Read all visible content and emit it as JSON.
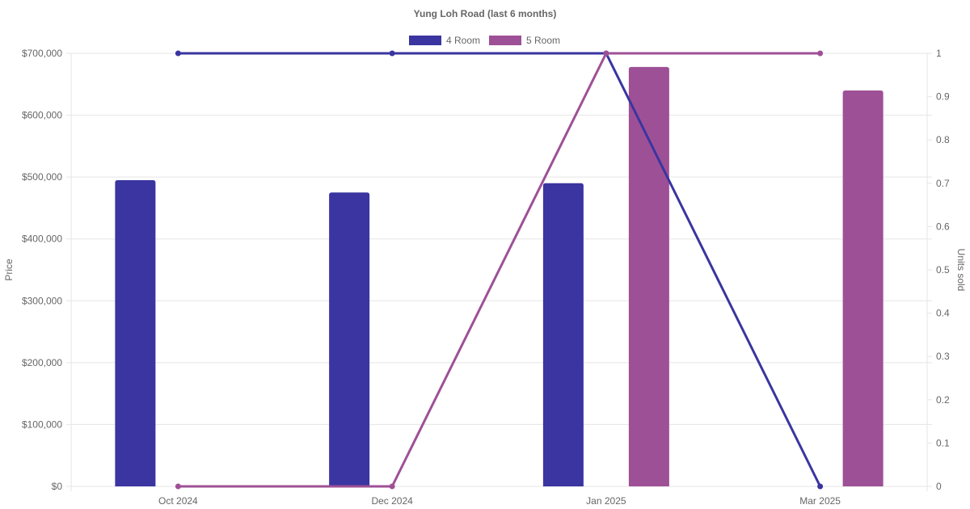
{
  "chart_data": {
    "type": "bar",
    "title": "Yung Loh Road (last 6 months)",
    "categories": [
      "Oct 2024",
      "Dec 2024",
      "Jan 2025",
      "Mar 2025"
    ],
    "series": [
      {
        "name": "4 Room",
        "type": "bar",
        "axis": "left",
        "color": "#3a35a0",
        "values": [
          495000,
          475000,
          490000,
          null
        ]
      },
      {
        "name": "5 Room",
        "type": "bar",
        "axis": "left",
        "color": "#9e5096",
        "values": [
          null,
          null,
          678000,
          640000
        ]
      },
      {
        "name": "4 Room",
        "type": "line",
        "axis": "right",
        "color": "#3a35a0",
        "values": [
          1,
          1,
          1,
          0
        ]
      },
      {
        "name": "5 Room",
        "type": "line",
        "axis": "right",
        "color": "#9e5096",
        "values": [
          0,
          0,
          1,
          1
        ]
      }
    ],
    "y_left": {
      "label": "Price",
      "ylim": [
        0,
        700000
      ],
      "ticks": [
        0,
        100000,
        200000,
        300000,
        400000,
        500000,
        600000,
        700000
      ],
      "tick_labels": [
        "$0",
        "$100,000",
        "$200,000",
        "$300,000",
        "$400,000",
        "$500,000",
        "$600,000",
        "$700,000"
      ]
    },
    "y_right": {
      "label": "Units sold",
      "ylim": [
        0,
        1
      ],
      "ticks": [
        0,
        0.1,
        0.2,
        0.3,
        0.4,
        0.5,
        0.6,
        0.7,
        0.8,
        0.9,
        1
      ],
      "tick_labels": [
        "0",
        "0.1",
        "0.2",
        "0.3",
        "0.4",
        "0.5",
        "0.6",
        "0.7",
        "0.8",
        "0.9",
        "1"
      ]
    },
    "legend": {
      "position": "top",
      "items": [
        {
          "label": "4 Room",
          "color": "#3a35a0"
        },
        {
          "label": "5 Room",
          "color": "#9e5096"
        }
      ]
    },
    "grid": true
  }
}
